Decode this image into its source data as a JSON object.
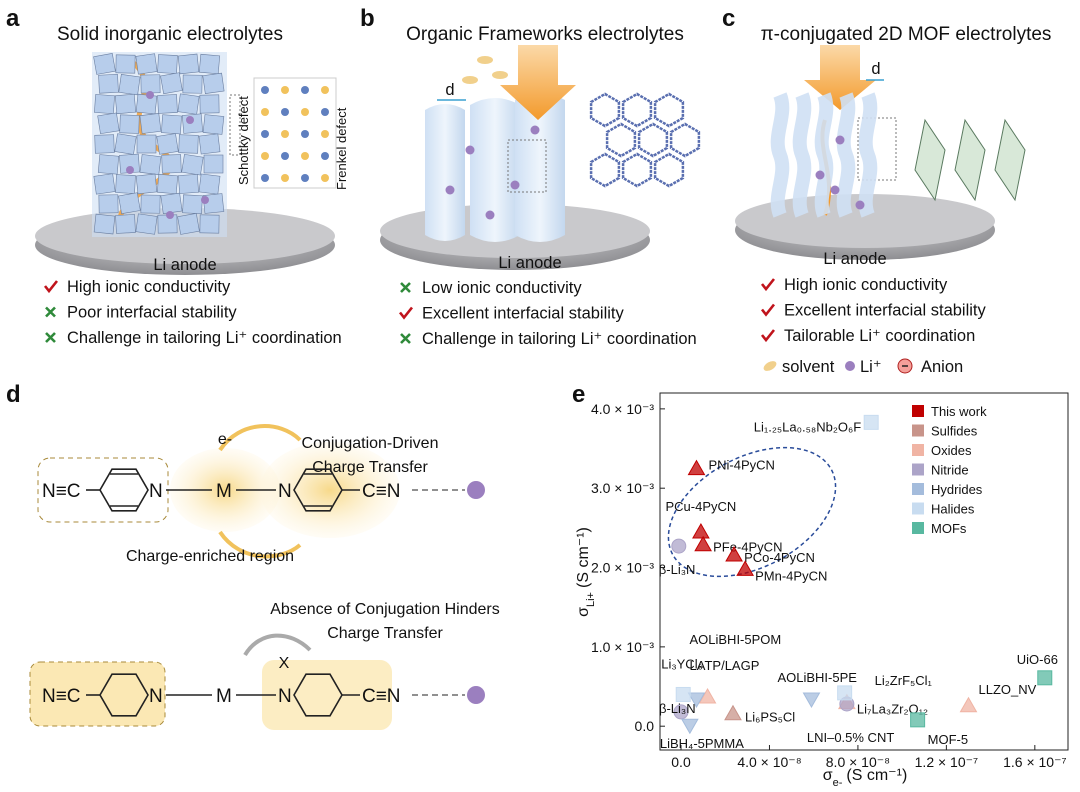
{
  "panels": [
    {
      "letter": "a",
      "title": "Solid inorganic electrolytes",
      "defects": [
        "Schottky defect",
        "Frenkel defect"
      ],
      "anode": "Li anode",
      "bullets": [
        {
          "text": "High ionic conductivity",
          "positive": true
        },
        {
          "text": "Poor interfacial stability",
          "positive": false
        },
        {
          "text": "Challenge in tailoring Li⁺ coordination",
          "positive": false
        }
      ]
    },
    {
      "letter": "b",
      "title": "Organic Frameworks electrolytes",
      "spacing": "d",
      "anode": "Li anode",
      "bullets": [
        {
          "text": "Low ionic conductivity",
          "positive": false
        },
        {
          "text": "Excellent interfacial stability",
          "positive": true
        },
        {
          "text": "Challenge in tailoring Li⁺ coordination",
          "positive": false
        }
      ]
    },
    {
      "letter": "c",
      "title": "π-conjugated 2D MOF electrolytes",
      "spacing": "d",
      "anode": "Li anode",
      "bullets": [
        {
          "text": "High ionic conductivity",
          "positive": true
        },
        {
          "text": "Excellent interfacial stability",
          "positive": true
        },
        {
          "text": "Tailorable Li⁺ coordination",
          "positive": true
        }
      ],
      "key": {
        "solvent": "solvent",
        "ion": "Li⁺",
        "anion": "Anion"
      }
    }
  ],
  "scheme": {
    "letter": "d",
    "top": {
      "caption": [
        "Conjugation-Driven",
        "Charge Transfer"
      ],
      "electron": "e-",
      "region": "Charge-enriched region"
    },
    "bottom": {
      "caption": [
        "Absence of Conjugation Hinders",
        "Charge Transfer"
      ],
      "blocked": "X"
    },
    "atoms": {
      "nitrile_left": "N≡C",
      "nitrogen": "N",
      "metal": "M",
      "nitrile_right": "C≡N"
    }
  },
  "chart_data": {
    "type": "scatter",
    "letter": "e",
    "xlabel": {
      "symbol": "σ",
      "sub": "e-",
      "unit": "(S cm⁻¹)"
    },
    "ylabel": {
      "symbol": "σ",
      "sub": "Li+",
      "unit": "(S cm⁻¹)"
    },
    "xlim": [
      -9.5e-09,
      1.75e-07
    ],
    "ylim": [
      -0.0003,
      0.0042
    ],
    "xticks": [
      {
        "value": 0,
        "label": "0.0"
      },
      {
        "value": 4e-08,
        "label": "4.0 × 10⁻⁸"
      },
      {
        "value": 8e-08,
        "label": "8.0 × 10⁻⁸"
      },
      {
        "value": 1.2e-07,
        "label": "1.2 × 10⁻⁷"
      },
      {
        "value": 1.6e-07,
        "label": "1.6 × 10⁻⁷"
      }
    ],
    "yticks": [
      {
        "value": 0,
        "label": "0.0"
      },
      {
        "value": 0.001,
        "label": "1.0 × 10⁻³"
      },
      {
        "value": 0.002,
        "label": "2.0 × 10⁻³"
      },
      {
        "value": 0.003,
        "label": "3.0 × 10⁻³"
      },
      {
        "value": 0.004,
        "label": "4.0 × 10⁻³"
      }
    ],
    "series": [
      {
        "name": "This work",
        "color": "#c00000",
        "marker": "triangle",
        "x": [
          7e-09,
          9e-09,
          1e-08,
          2.4e-08,
          2.9e-08
        ],
        "values": [
          0.00326,
          0.00246,
          0.0023,
          0.00217,
          0.00199
        ],
        "labels": [
          "PNi-4PyCN",
          "PCu-4PyCN",
          "PFe-4PyCN",
          "PCo-4PyCN",
          "PMn-4PyCN"
        ]
      },
      {
        "name": "Sulfides",
        "color": "#c8948a",
        "marker": "triangle",
        "x": [
          2.35e-08
        ],
        "values": [
          0.00017
        ],
        "labels": [
          "Li₆PS₅Cl"
        ]
      },
      {
        "name": "Oxides",
        "color": "#f0b4a4",
        "marker": "triangle",
        "x": [
          7.5e-08,
          1.3e-07,
          1.2e-08
        ],
        "values": [
          0.00031,
          0.00027,
          0.00038
        ],
        "labels": [
          "Li₇La₃Zr₂O₁₂",
          "LLZO_NV",
          "LATP/LAGP"
        ]
      },
      {
        "name": "Nitride",
        "color": "#aca4c8",
        "marker": "circle",
        "x": [
          -1e-09,
          0,
          7.5e-08
        ],
        "values": [
          0.00227,
          0.00018,
          0.00028
        ],
        "labels": [
          "β-Li₃N",
          "β-Li₃N",
          "LNI–0.5% CNT"
        ]
      },
      {
        "name": "Hydrides",
        "color": "#a4bcdc",
        "marker": "down",
        "x": [
          7e-09,
          5.9e-08,
          4e-09
        ],
        "values": [
          0.00033,
          0.00033,
          0
        ],
        "labels": [
          "AOLiBHI-5POM",
          "AOLiBHI-5PE",
          "LiBH₄-5PMMA"
        ]
      },
      {
        "name": "Halides",
        "color": "#c8dcf0",
        "marker": "square",
        "x": [
          8.6e-08,
          1e-09,
          7.4e-08
        ],
        "values": [
          0.00383,
          0.0004,
          0.00042
        ],
        "labels": [
          "Li₁.₂₅La₀.₅₈Nb₂O₆F",
          "Li₃YCl₆",
          "Li₂ZrF₅Cl₁"
        ]
      },
      {
        "name": "MOFs",
        "color": "#58b8a0",
        "marker": "square",
        "x": [
          1.645e-07,
          1.07e-07
        ],
        "values": [
          0.00061,
          8e-05
        ],
        "labels": [
          "UiO-66",
          "MOF-5"
        ]
      }
    ]
  }
}
